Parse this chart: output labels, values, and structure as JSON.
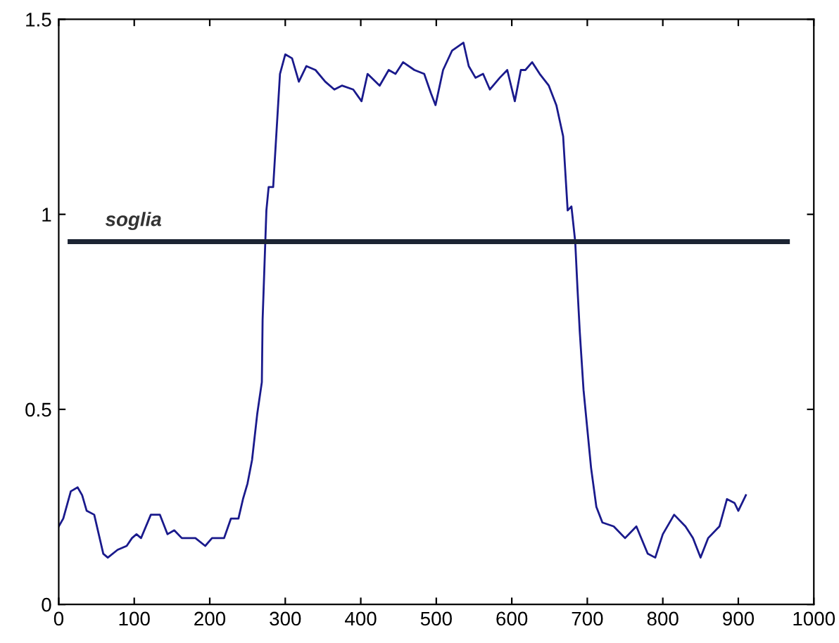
{
  "chart_data": {
    "type": "line",
    "xlim": [
      0,
      1000
    ],
    "ylim": [
      0,
      1.5
    ],
    "xticks": [
      0,
      100,
      200,
      300,
      400,
      500,
      600,
      700,
      800,
      900,
      1000
    ],
    "yticks": [
      0,
      0.5,
      1,
      1.5
    ],
    "grid": false,
    "legend": false,
    "series": [
      {
        "color": "#1a1a8c",
        "x": [
          0,
          6,
          16,
          25,
          31,
          37,
          47,
          53,
          59,
          65,
          78,
          90,
          97,
          103,
          109,
          122,
          134,
          144,
          153,
          163,
          181,
          194,
          203,
          219,
          228,
          238,
          244,
          250,
          256,
          263,
          266,
          269,
          270,
          275,
          278,
          284,
          293,
          300,
          309,
          318,
          328,
          340,
          353,
          365,
          375,
          390,
          401,
          409,
          425,
          437,
          446,
          456,
          471,
          484,
          493,
          499,
          509,
          521,
          536,
          543,
          552,
          562,
          571,
          584,
          594,
          604,
          612,
          618,
          627,
          637,
          649,
          659,
          668,
          674,
          679,
          684,
          687,
          690,
          695,
          700,
          705,
          712,
          720,
          735,
          750,
          765,
          780,
          790,
          800,
          815,
          830,
          840,
          850,
          860,
          875,
          885,
          895,
          900,
          910
        ],
        "values": [
          0.2,
          0.22,
          0.29,
          0.3,
          0.28,
          0.24,
          0.23,
          0.18,
          0.13,
          0.12,
          0.14,
          0.15,
          0.17,
          0.18,
          0.17,
          0.23,
          0.23,
          0.18,
          0.19,
          0.17,
          0.17,
          0.15,
          0.17,
          0.17,
          0.22,
          0.22,
          0.27,
          0.31,
          0.37,
          0.49,
          0.53,
          0.57,
          0.73,
          1.01,
          1.07,
          1.07,
          1.36,
          1.41,
          1.4,
          1.34,
          1.38,
          1.37,
          1.34,
          1.32,
          1.33,
          1.32,
          1.29,
          1.36,
          1.33,
          1.37,
          1.36,
          1.39,
          1.37,
          1.36,
          1.31,
          1.28,
          1.37,
          1.42,
          1.44,
          1.38,
          1.35,
          1.36,
          1.32,
          1.35,
          1.37,
          1.29,
          1.37,
          1.37,
          1.39,
          1.36,
          1.33,
          1.28,
          1.2,
          1.01,
          1.02,
          0.93,
          0.81,
          0.7,
          0.55,
          0.45,
          0.35,
          0.25,
          0.21,
          0.2,
          0.17,
          0.2,
          0.13,
          0.12,
          0.18,
          0.23,
          0.2,
          0.17,
          0.12,
          0.17,
          0.2,
          0.27,
          0.26,
          0.24,
          0.28
        ]
      },
      {
        "name": "soglia",
        "color": "#1c2433",
        "x": [
          15,
          965
        ],
        "values": [
          0.93,
          0.93
        ]
      }
    ]
  }
}
